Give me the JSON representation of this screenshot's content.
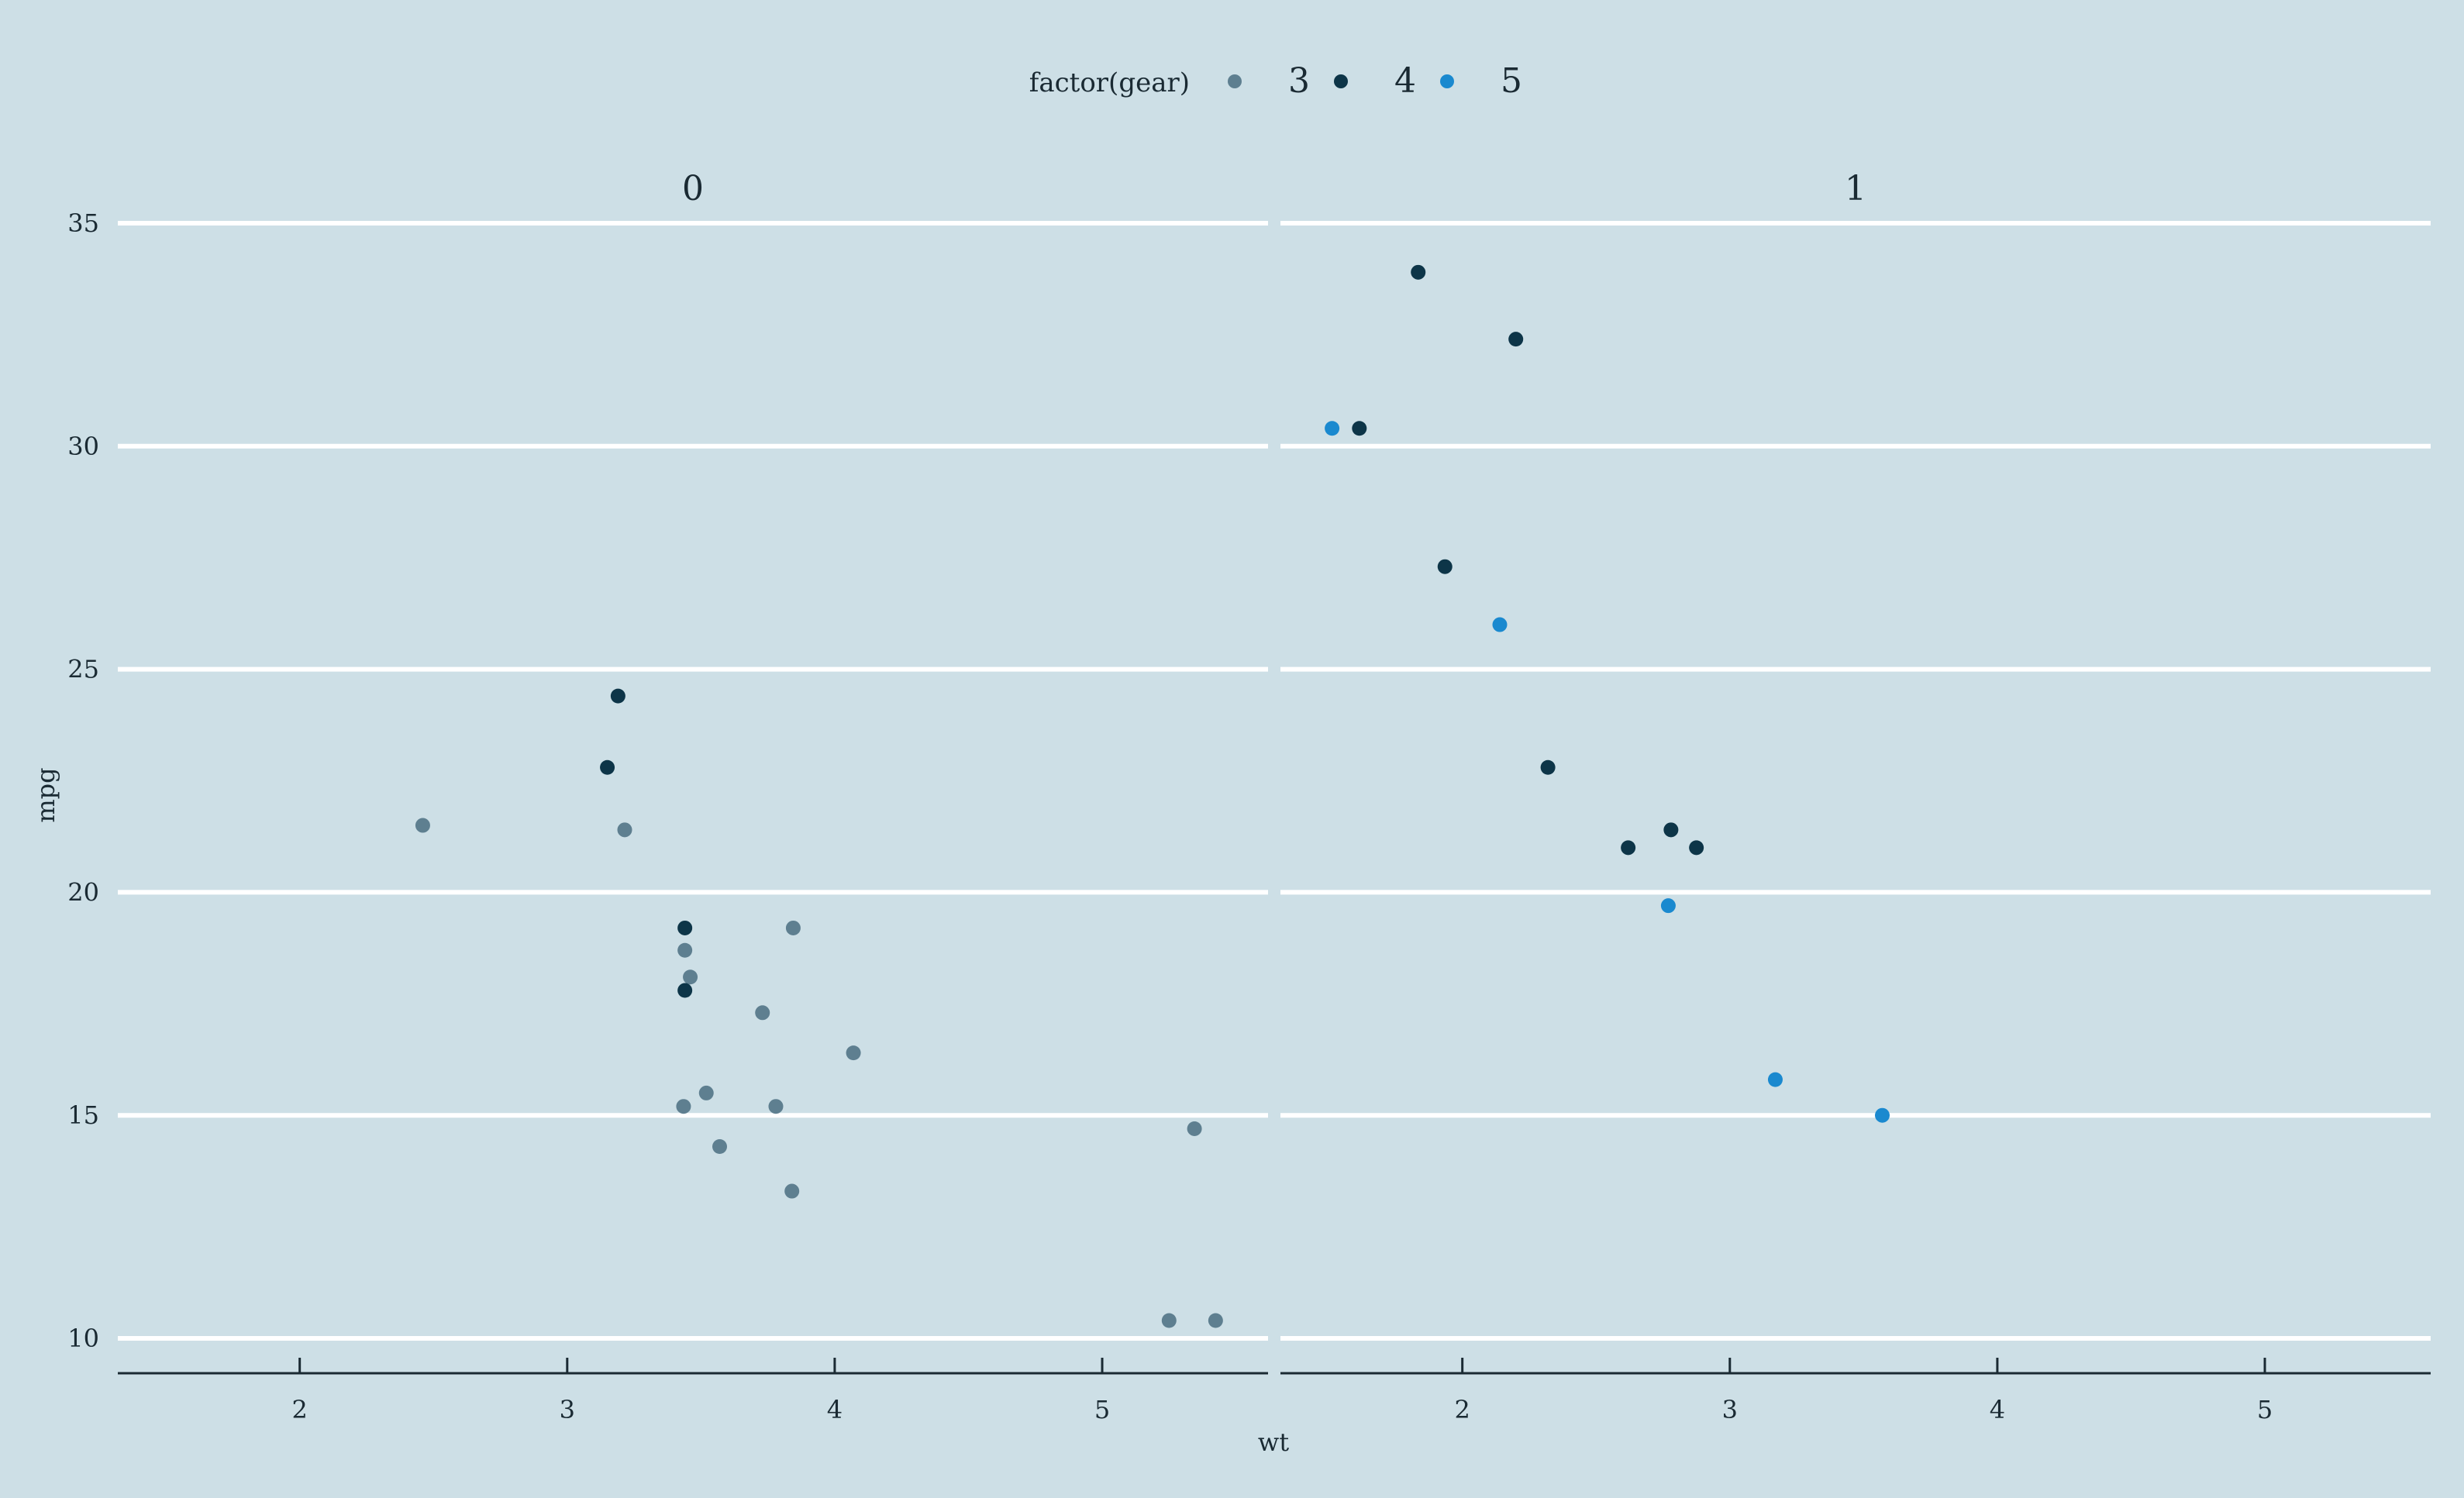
{
  "chart_data": {
    "type": "scatter",
    "title": "",
    "xlabel": "wt",
    "ylabel": "mpg",
    "xlim": [
      1.32,
      5.62
    ],
    "ylim": [
      9.2,
      35.6
    ],
    "x_ticks": [
      2,
      3,
      4,
      5
    ],
    "x_tick_labels": [
      "2",
      "3",
      "4",
      "5"
    ],
    "y_ticks": [
      10,
      15,
      20,
      25,
      30,
      35
    ],
    "y_tick_labels": [
      "10",
      "15",
      "20",
      "25",
      "30",
      "35"
    ],
    "grid": "horizontal major only",
    "legend": {
      "title": "factor(gear)",
      "position": "top",
      "entries": [
        {
          "label": "3",
          "color": "#5e7f90"
        },
        {
          "label": "4",
          "color": "#0d3548"
        },
        {
          "label": "5",
          "color": "#1a89cf"
        }
      ]
    },
    "facets": [
      {
        "label": "0",
        "points": [
          {
            "x": 2.46,
            "y": 21.5,
            "gear": "3"
          },
          {
            "x": 3.215,
            "y": 21.4,
            "gear": "3"
          },
          {
            "x": 3.44,
            "y": 18.7,
            "gear": "3"
          },
          {
            "x": 3.46,
            "y": 18.1,
            "gear": "3"
          },
          {
            "x": 3.57,
            "y": 14.3,
            "gear": "3"
          },
          {
            "x": 4.07,
            "y": 16.4,
            "gear": "3"
          },
          {
            "x": 3.73,
            "y": 17.3,
            "gear": "3"
          },
          {
            "x": 3.78,
            "y": 15.2,
            "gear": "3"
          },
          {
            "x": 5.25,
            "y": 10.4,
            "gear": "3"
          },
          {
            "x": 5.424,
            "y": 10.4,
            "gear": "3"
          },
          {
            "x": 5.345,
            "y": 14.7,
            "gear": "3"
          },
          {
            "x": 3.52,
            "y": 15.5,
            "gear": "3"
          },
          {
            "x": 3.435,
            "y": 15.2,
            "gear": "3"
          },
          {
            "x": 3.84,
            "y": 13.3,
            "gear": "3"
          },
          {
            "x": 3.845,
            "y": 19.2,
            "gear": "3"
          },
          {
            "x": 3.19,
            "y": 24.4,
            "gear": "4"
          },
          {
            "x": 3.15,
            "y": 22.8,
            "gear": "4"
          },
          {
            "x": 3.44,
            "y": 19.2,
            "gear": "4"
          },
          {
            "x": 3.44,
            "y": 17.8,
            "gear": "4"
          }
        ]
      },
      {
        "label": "1",
        "points": [
          {
            "x": 2.62,
            "y": 21.0,
            "gear": "4"
          },
          {
            "x": 2.875,
            "y": 21.0,
            "gear": "4"
          },
          {
            "x": 2.32,
            "y": 22.8,
            "gear": "4"
          },
          {
            "x": 2.2,
            "y": 32.4,
            "gear": "4"
          },
          {
            "x": 1.615,
            "y": 30.4,
            "gear": "4"
          },
          {
            "x": 1.835,
            "y": 33.9,
            "gear": "4"
          },
          {
            "x": 1.935,
            "y": 27.3,
            "gear": "4"
          },
          {
            "x": 2.78,
            "y": 21.4,
            "gear": "4"
          },
          {
            "x": 2.14,
            "y": 26.0,
            "gear": "5"
          },
          {
            "x": 1.513,
            "y": 30.4,
            "gear": "5"
          },
          {
            "x": 3.17,
            "y": 15.8,
            "gear": "5"
          },
          {
            "x": 2.77,
            "y": 19.7,
            "gear": "5"
          },
          {
            "x": 3.57,
            "y": 15.0,
            "gear": "5"
          }
        ]
      }
    ]
  }
}
